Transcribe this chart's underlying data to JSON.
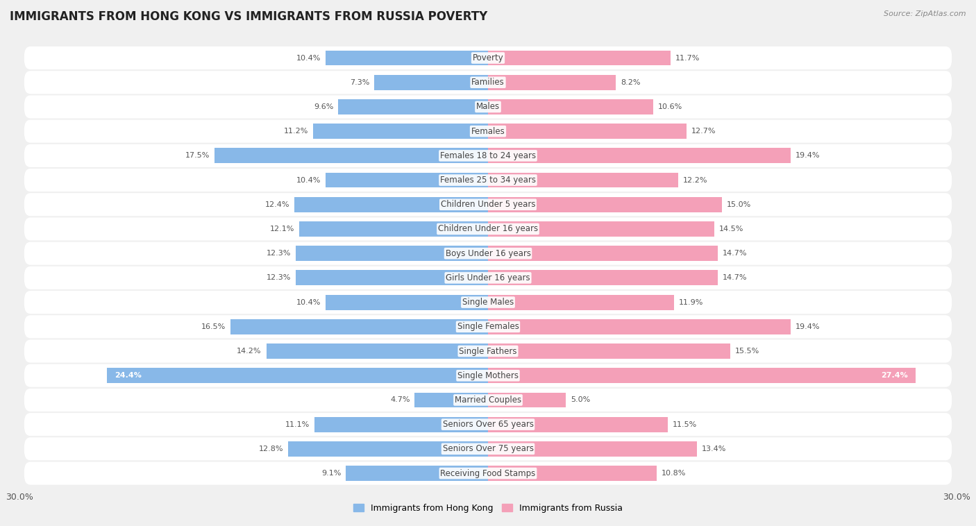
{
  "title": "IMMIGRANTS FROM HONG KONG VS IMMIGRANTS FROM RUSSIA POVERTY",
  "source": "Source: ZipAtlas.com",
  "categories": [
    "Poverty",
    "Families",
    "Males",
    "Females",
    "Females 18 to 24 years",
    "Females 25 to 34 years",
    "Children Under 5 years",
    "Children Under 16 years",
    "Boys Under 16 years",
    "Girls Under 16 years",
    "Single Males",
    "Single Females",
    "Single Fathers",
    "Single Mothers",
    "Married Couples",
    "Seniors Over 65 years",
    "Seniors Over 75 years",
    "Receiving Food Stamps"
  ],
  "hong_kong_values": [
    10.4,
    7.3,
    9.6,
    11.2,
    17.5,
    10.4,
    12.4,
    12.1,
    12.3,
    12.3,
    10.4,
    16.5,
    14.2,
    24.4,
    4.7,
    11.1,
    12.8,
    9.1
  ],
  "russia_values": [
    11.7,
    8.2,
    10.6,
    12.7,
    19.4,
    12.2,
    15.0,
    14.5,
    14.7,
    14.7,
    11.9,
    19.4,
    15.5,
    27.4,
    5.0,
    11.5,
    13.4,
    10.8
  ],
  "hong_kong_color": "#88b8e8",
  "russia_color": "#f4a0b8",
  "hong_kong_label": "Immigrants from Hong Kong",
  "russia_label": "Immigrants from Russia",
  "xlim": 30.0,
  "background_color": "#f0f0f0",
  "bar_background_color": "#ffffff",
  "title_fontsize": 12,
  "label_fontsize": 8.5,
  "value_fontsize": 8,
  "bar_height": 0.62
}
